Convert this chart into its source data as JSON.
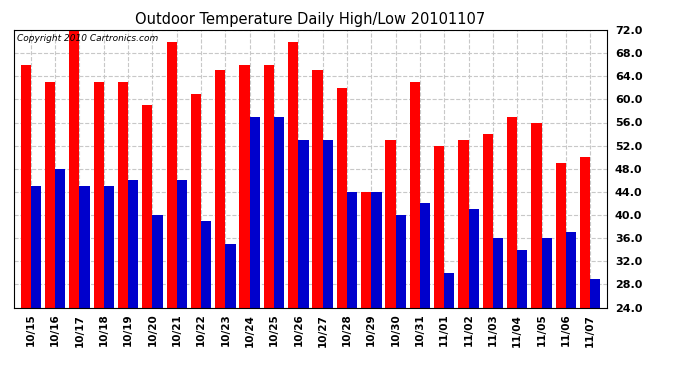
{
  "title": "Outdoor Temperature Daily High/Low 20101107",
  "copyright": "Copyright 2010 Cartronics.com",
  "background_color": "#ffffff",
  "grid_color": "#c8c8c8",
  "bar_width": 0.42,
  "ylim": [
    24.0,
    72.0
  ],
  "yticks": [
    24.0,
    28.0,
    32.0,
    36.0,
    40.0,
    44.0,
    48.0,
    52.0,
    56.0,
    60.0,
    64.0,
    68.0,
    72.0
  ],
  "categories": [
    "10/15",
    "10/16",
    "10/17",
    "10/18",
    "10/19",
    "10/20",
    "10/21",
    "10/22",
    "10/23",
    "10/24",
    "10/25",
    "10/26",
    "10/27",
    "10/28",
    "10/29",
    "10/30",
    "10/31",
    "11/01",
    "11/02",
    "11/03",
    "11/04",
    "11/05",
    "11/06",
    "11/07"
  ],
  "highs": [
    66,
    63,
    73,
    63,
    63,
    59,
    70,
    61,
    65,
    66,
    66,
    70,
    65,
    62,
    44,
    53,
    63,
    52,
    53,
    54,
    57,
    56,
    49,
    50
  ],
  "lows": [
    45,
    48,
    45,
    45,
    46,
    40,
    46,
    39,
    35,
    57,
    57,
    53,
    53,
    44,
    44,
    40,
    42,
    30,
    41,
    36,
    34,
    36,
    37,
    29
  ],
  "high_color": "#ff0000",
  "low_color": "#0000cc",
  "figwidth": 6.9,
  "figheight": 3.75,
  "dpi": 100
}
